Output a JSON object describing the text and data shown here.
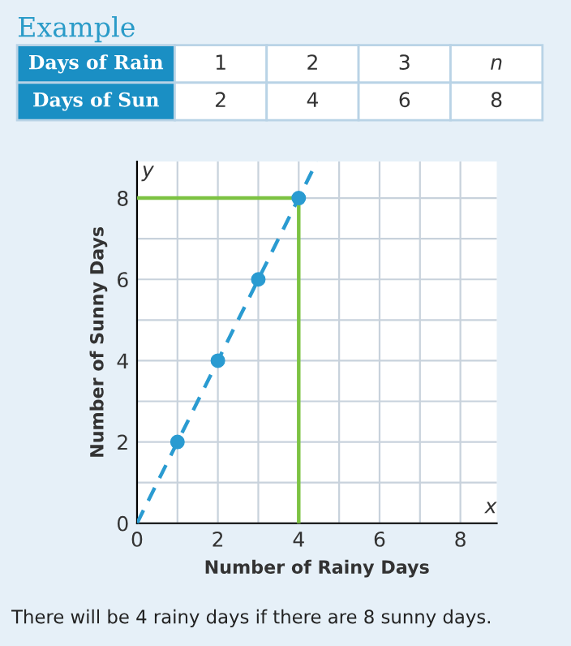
{
  "chart_data": {
    "type": "scatter",
    "title": "Example",
    "xlabel": "Number of Rainy Days",
    "ylabel": "Number of Sunny Days",
    "annotations": [
      "Days of Rain",
      "1",
      "2",
      "3",
      "n",
      "Days of Sun",
      "2",
      "4",
      "6",
      "8",
      "y",
      "x",
      "There will be 4 rainy days if there are 8 sunny days."
    ],
    "series": [
      {
        "type": "line",
        "color": "#2a9bd1",
        "line_style": "dashed",
        "marker": "none",
        "x": [
          0,
          4.45
        ],
        "values": [
          0,
          8.9
        ]
      },
      {
        "type": "line",
        "color": "#7cc242",
        "line_style": "solid",
        "marker": "none",
        "x": [
          0,
          3.9
        ],
        "values": [
          8,
          8
        ]
      },
      {
        "type": "line",
        "color": "#7cc242",
        "line_style": "solid",
        "marker": "none",
        "x": [
          4,
          4
        ],
        "values": [
          0,
          7.9
        ]
      },
      {
        "color": "#2a9bd1",
        "marker": "circle",
        "x": [
          1,
          2,
          3,
          4
        ],
        "values": [
          2,
          4,
          6,
          8
        ]
      }
    ],
    "xlim": [
      0,
      8.9
    ],
    "ylim": [
      0,
      8.9
    ],
    "xticks": [
      0,
      {
        "value": 1,
        "label": null
      },
      2,
      {
        "value": 3,
        "label": null
      },
      4,
      {
        "value": 5,
        "label": null
      },
      6,
      {
        "value": 7,
        "label": null
      },
      8
    ],
    "yticks": [
      0,
      {
        "value": 1,
        "label": null
      },
      2,
      {
        "value": 3,
        "label": null
      },
      4,
      {
        "value": 5,
        "label": null
      },
      6,
      {
        "value": 7,
        "label": null
      },
      8
    ],
    "grid": true
  }
}
